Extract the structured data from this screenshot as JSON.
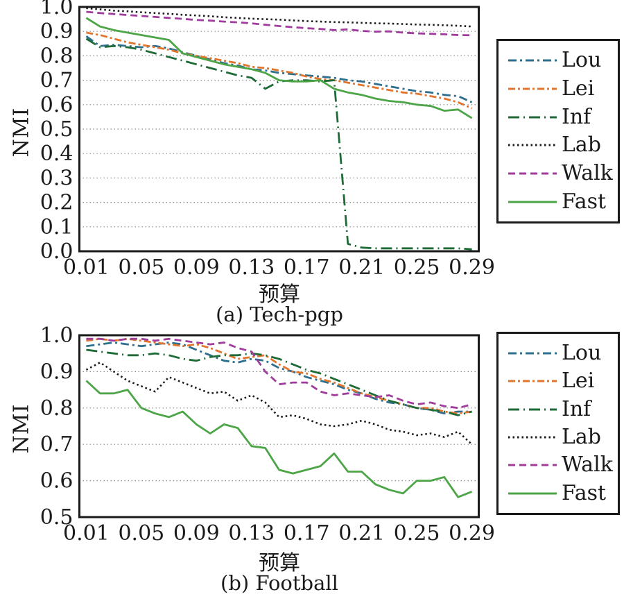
{
  "figure": {
    "ylabel": "NMI",
    "xlabel": "预算"
  },
  "colors": {
    "axis": "#1a1a1a",
    "grid": "#8a8a8a",
    "text": "#1a1a1a",
    "background": "#ffffff"
  },
  "series_styles": [
    {
      "name": "Lou",
      "color": "#2E6F8E",
      "dash": "12 5 3 5",
      "width": 2.8
    },
    {
      "name": "Lei",
      "color": "#E2752D",
      "dash": "10 4 3 4",
      "width": 2.8
    },
    {
      "name": "Inf",
      "color": "#1E6B37",
      "dash": "16 6 2 6",
      "width": 2.8
    },
    {
      "name": "Lab",
      "color": "#1a1a1a",
      "dash": "2.5 4",
      "width": 2.6
    },
    {
      "name": "Walk",
      "color": "#A03C9B",
      "dash": "10 6",
      "width": 2.8
    },
    {
      "name": "Fast",
      "color": "#4CA546",
      "dash": "",
      "width": 2.8
    }
  ],
  "legend": {
    "entries": [
      "Lou",
      "Lei",
      "Inf",
      "Lab",
      "Walk",
      "Fast"
    ]
  },
  "chart_data": [
    {
      "type": "line",
      "title": "(a) Tech-pgp",
      "xlabel": "预算",
      "ylabel": "NMI",
      "ylim": [
        0.0,
        1.0
      ],
      "grid": "dotted horizontal",
      "legend_position": "outside-right",
      "y_ticks": [
        "1.0",
        "0.9",
        "0.8",
        "0.7",
        "0.6",
        "0.5",
        "0.4",
        "0.3",
        "0.2",
        "0.1",
        "0.0"
      ],
      "x_ticks": [
        "0.01",
        "0.05",
        "0.09",
        "0.13",
        "0.17",
        "0.21",
        "0.25",
        "0.29"
      ],
      "x": [
        0.01,
        0.02,
        0.03,
        0.04,
        0.05,
        0.06,
        0.07,
        0.08,
        0.09,
        0.1,
        0.11,
        0.12,
        0.13,
        0.14,
        0.15,
        0.16,
        0.17,
        0.18,
        0.19,
        0.2,
        0.21,
        0.22,
        0.23,
        0.24,
        0.25,
        0.26,
        0.27,
        0.28,
        0.29
      ],
      "series": [
        {
          "name": "Lou",
          "values": [
            0.88,
            0.84,
            0.845,
            0.84,
            0.835,
            0.84,
            0.83,
            0.815,
            0.8,
            0.785,
            0.77,
            0.76,
            0.745,
            0.74,
            0.73,
            0.725,
            0.72,
            0.715,
            0.71,
            0.7,
            0.695,
            0.685,
            0.675,
            0.665,
            0.655,
            0.65,
            0.64,
            0.635,
            0.61
          ]
        },
        {
          "name": "Lei",
          "values": [
            0.895,
            0.885,
            0.87,
            0.855,
            0.845,
            0.835,
            0.825,
            0.81,
            0.8,
            0.79,
            0.78,
            0.77,
            0.755,
            0.75,
            0.74,
            0.73,
            0.715,
            0.705,
            0.7,
            0.69,
            0.68,
            0.67,
            0.66,
            0.65,
            0.645,
            0.635,
            0.625,
            0.61,
            0.585
          ]
        },
        {
          "name": "Inf",
          "values": [
            0.87,
            0.835,
            0.84,
            0.835,
            0.825,
            0.81,
            0.795,
            0.78,
            0.765,
            0.75,
            0.735,
            0.72,
            0.71,
            0.665,
            0.695,
            0.7,
            0.7,
            0.695,
            0.7,
            0.03,
            0.015,
            0.012,
            0.012,
            0.012,
            0.012,
            0.012,
            0.012,
            0.012,
            0.008
          ]
        },
        {
          "name": "Lab",
          "values": [
            0.995,
            0.99,
            0.985,
            0.982,
            0.978,
            0.975,
            0.972,
            0.968,
            0.965,
            0.962,
            0.958,
            0.955,
            0.952,
            0.95,
            0.948,
            0.945,
            0.942,
            0.94,
            0.938,
            0.937,
            0.935,
            0.933,
            0.932,
            0.93,
            0.928,
            0.927,
            0.925,
            0.923,
            0.92
          ]
        },
        {
          "name": "Walk",
          "values": [
            0.98,
            0.975,
            0.971,
            0.967,
            0.963,
            0.959,
            0.955,
            0.951,
            0.947,
            0.944,
            0.94,
            0.937,
            0.933,
            0.927,
            0.922,
            0.917,
            0.913,
            0.91,
            0.905,
            0.908,
            0.902,
            0.899,
            0.9,
            0.895,
            0.892,
            0.89,
            0.888,
            0.885,
            0.884
          ]
        },
        {
          "name": "Fast",
          "values": [
            0.955,
            0.92,
            0.905,
            0.895,
            0.885,
            0.875,
            0.865,
            0.81,
            0.795,
            0.78,
            0.765,
            0.755,
            0.745,
            0.73,
            0.7,
            0.695,
            0.695,
            0.7,
            0.665,
            0.65,
            0.64,
            0.625,
            0.615,
            0.61,
            0.6,
            0.595,
            0.575,
            0.58,
            0.545
          ]
        }
      ]
    },
    {
      "type": "line",
      "title": "(b) Football",
      "xlabel": "预算",
      "ylabel": "NMI",
      "ylim": [
        0.5,
        1.0
      ],
      "grid": "dotted horizontal",
      "legend_position": "outside-right",
      "y_ticks": [
        "1.0",
        "0.9",
        "0.8",
        "0.7",
        "0.6",
        "0.5"
      ],
      "x_ticks": [
        "0.01",
        "0.05",
        "0.09",
        "0.13",
        "0.17",
        "0.21",
        "0.25",
        "0.29"
      ],
      "x": [
        0.01,
        0.02,
        0.03,
        0.04,
        0.05,
        0.06,
        0.07,
        0.08,
        0.09,
        0.1,
        0.11,
        0.12,
        0.13,
        0.14,
        0.15,
        0.16,
        0.17,
        0.18,
        0.19,
        0.2,
        0.21,
        0.22,
        0.23,
        0.24,
        0.25,
        0.26,
        0.27,
        0.28,
        0.29
      ],
      "series": [
        {
          "name": "Lou",
          "values": [
            0.97,
            0.975,
            0.98,
            0.975,
            0.97,
            0.975,
            0.98,
            0.975,
            0.96,
            0.945,
            0.93,
            0.925,
            0.935,
            0.93,
            0.91,
            0.9,
            0.885,
            0.875,
            0.865,
            0.85,
            0.84,
            0.825,
            0.815,
            0.81,
            0.8,
            0.795,
            0.785,
            0.79,
            0.79
          ]
        },
        {
          "name": "Lei",
          "values": [
            0.985,
            0.99,
            0.985,
            0.99,
            0.985,
            0.98,
            0.975,
            0.97,
            0.975,
            0.965,
            0.95,
            0.935,
            0.94,
            0.945,
            0.92,
            0.9,
            0.895,
            0.88,
            0.87,
            0.855,
            0.84,
            0.83,
            0.82,
            0.81,
            0.8,
            0.8,
            0.79,
            0.785,
            0.79
          ]
        },
        {
          "name": "Inf",
          "values": [
            0.96,
            0.955,
            0.95,
            0.945,
            0.945,
            0.95,
            0.945,
            0.935,
            0.93,
            0.94,
            0.945,
            0.945,
            0.95,
            0.945,
            0.935,
            0.92,
            0.905,
            0.895,
            0.88,
            0.865,
            0.85,
            0.835,
            0.82,
            0.81,
            0.8,
            0.795,
            0.79,
            0.78,
            0.79
          ]
        },
        {
          "name": "Lab",
          "values": [
            0.905,
            0.925,
            0.9,
            0.875,
            0.86,
            0.845,
            0.885,
            0.87,
            0.855,
            0.84,
            0.845,
            0.82,
            0.835,
            0.815,
            0.775,
            0.78,
            0.77,
            0.755,
            0.75,
            0.755,
            0.765,
            0.755,
            0.74,
            0.735,
            0.725,
            0.73,
            0.72,
            0.735,
            0.7
          ]
        },
        {
          "name": "Walk",
          "values": [
            0.99,
            0.99,
            0.985,
            0.99,
            0.99,
            0.985,
            0.99,
            0.985,
            0.98,
            0.975,
            0.98,
            0.965,
            0.955,
            0.9,
            0.865,
            0.87,
            0.87,
            0.845,
            0.835,
            0.84,
            0.835,
            0.83,
            0.835,
            0.82,
            0.81,
            0.815,
            0.805,
            0.8,
            0.81
          ]
        },
        {
          "name": "Fast",
          "values": [
            0.875,
            0.84,
            0.84,
            0.85,
            0.8,
            0.785,
            0.775,
            0.79,
            0.755,
            0.73,
            0.755,
            0.745,
            0.695,
            0.69,
            0.63,
            0.62,
            0.63,
            0.64,
            0.675,
            0.625,
            0.625,
            0.59,
            0.575,
            0.565,
            0.6,
            0.6,
            0.61,
            0.555,
            0.57
          ]
        }
      ]
    }
  ]
}
